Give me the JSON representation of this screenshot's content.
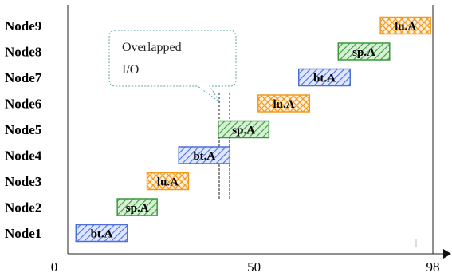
{
  "nodes": [
    "Node1",
    "Node2",
    "Node3",
    "Node4",
    "Node5",
    "Node6",
    "Node7",
    "Node8",
    "Node9"
  ],
  "axis": {
    "ticks": [
      {
        "value": 0,
        "label": "0"
      },
      {
        "value": 50,
        "label": "50"
      },
      {
        "value": 98,
        "label": "98"
      }
    ]
  },
  "jobs": [
    {
      "node": "Node1",
      "label": "bt.A",
      "start": 2.2,
      "end": 16.0,
      "color": "#4f6fd8",
      "fill": "#dfe6ff"
    },
    {
      "node": "Node2",
      "label": "sp.A",
      "start": 13.3,
      "end": 24.0,
      "color": "#3a9a3a",
      "fill": "#d6f0d6"
    },
    {
      "node": "Node3",
      "label": "lu.A",
      "start": 21.3,
      "end": 32.4,
      "color": "#f29a1f",
      "fill": "#ffe9c8"
    },
    {
      "node": "Node4",
      "label": "bt.A",
      "start": 29.8,
      "end": 43.5,
      "color": "#4f6fd8",
      "fill": "#dfe6ff"
    },
    {
      "node": "Node5",
      "label": "sp.A",
      "start": 40.4,
      "end": 54.0,
      "color": "#3a9a3a",
      "fill": "#d6f0d6"
    },
    {
      "node": "Node6",
      "label": "lu.A",
      "start": 51.1,
      "end": 64.9,
      "color": "#f29a1f",
      "fill": "#ffe9c8"
    },
    {
      "node": "Node7",
      "label": "bt.A",
      "start": 62.0,
      "end": 75.8,
      "color": "#4f6fd8",
      "fill": "#dfe6ff"
    },
    {
      "node": "Node8",
      "label": "sp.A",
      "start": 72.6,
      "end": 86.4,
      "color": "#3a9a3a",
      "fill": "#d6f0d6"
    },
    {
      "node": "Node9",
      "label": "lu.A",
      "start": 83.9,
      "end": 97.4,
      "color": "#f29a1f",
      "fill": "#ffe9c8"
    }
  ],
  "callout": {
    "lines": [
      "Overlapped",
      "I/O"
    ]
  }
}
